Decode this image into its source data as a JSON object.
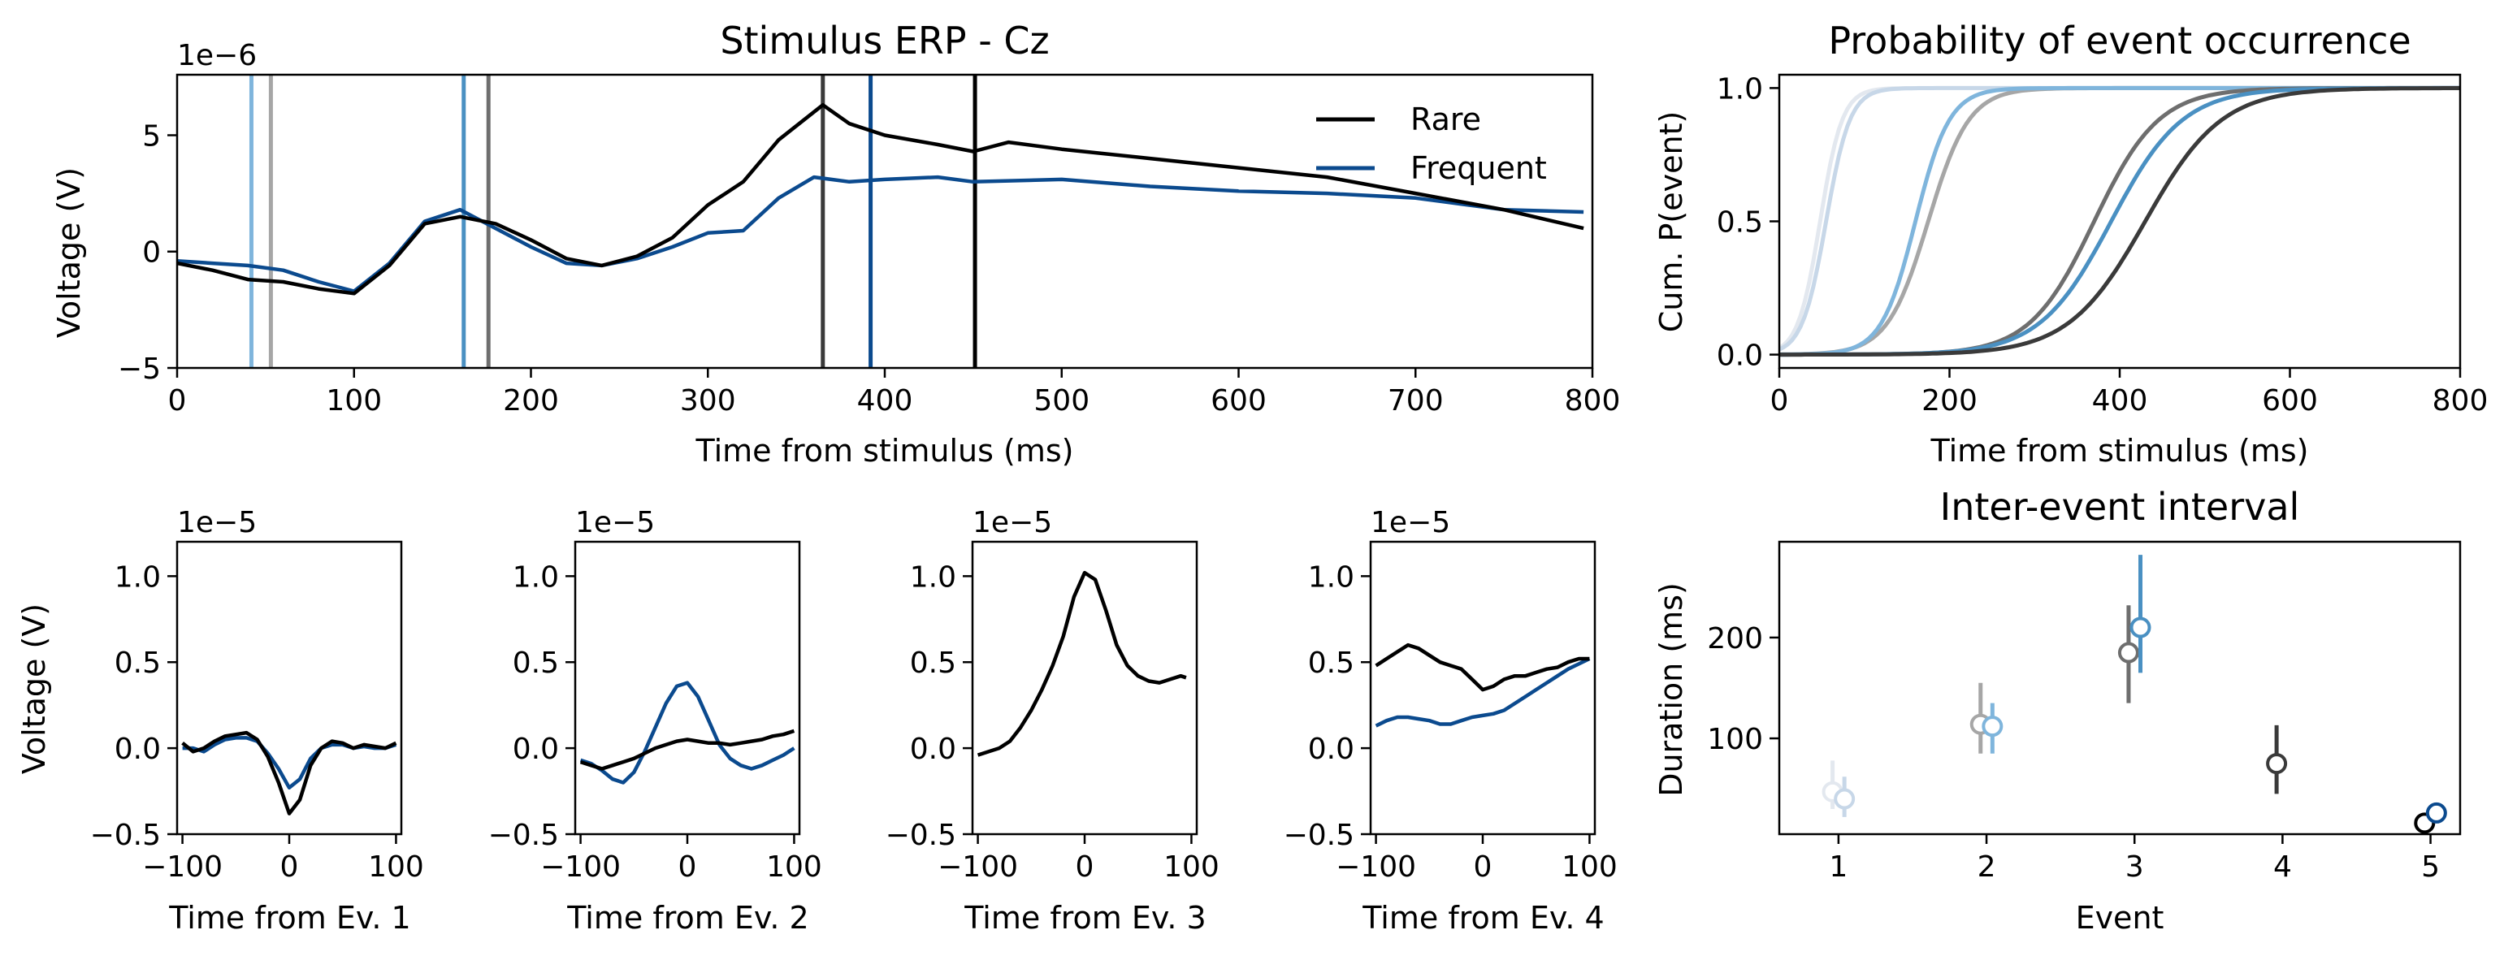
{
  "chart_data": [
    {
      "id": "erp",
      "type": "line",
      "title": "Stimulus ERP - Cz",
      "xlabel": "Time from stimulus (ms)",
      "ylabel": "Voltage (V)",
      "y_scale_label": "1e−6",
      "xlim": [
        0,
        800
      ],
      "ylim": [
        -5,
        7.6
      ],
      "xticks": [
        0,
        100,
        200,
        300,
        400,
        500,
        600,
        700,
        800
      ],
      "yticks": [
        -5,
        0,
        5
      ],
      "legend": {
        "placement": "top-right",
        "entries": [
          "Rare",
          "Frequent"
        ]
      },
      "series": [
        {
          "name": "Rare",
          "color": "#000000",
          "x": [
            0,
            20,
            40,
            60,
            80,
            100,
            120,
            140,
            160,
            180,
            200,
            220,
            240,
            260,
            280,
            300,
            320,
            340,
            365,
            380,
            400,
            430,
            450,
            470,
            500,
            550,
            600,
            650,
            700,
            750,
            795
          ],
          "y": [
            -0.5,
            -0.8,
            -1.2,
            -1.3,
            -1.6,
            -1.8,
            -0.6,
            1.2,
            1.5,
            1.2,
            0.5,
            -0.3,
            -0.6,
            -0.2,
            0.6,
            2.0,
            3.0,
            4.8,
            6.3,
            5.5,
            5.0,
            4.6,
            4.3,
            4.7,
            4.4,
            4.0,
            3.6,
            3.2,
            2.5,
            1.8,
            1.0
          ]
        },
        {
          "name": "Frequent",
          "color": "#0b4a8e",
          "x": [
            0,
            20,
            40,
            60,
            80,
            100,
            120,
            140,
            160,
            180,
            200,
            220,
            240,
            260,
            280,
            300,
            320,
            340,
            360,
            380,
            400,
            430,
            450,
            500,
            550,
            600,
            650,
            700,
            750,
            795
          ],
          "y": [
            -0.4,
            -0.5,
            -0.6,
            -0.8,
            -1.3,
            -1.7,
            -0.5,
            1.3,
            1.8,
            1.0,
            0.2,
            -0.5,
            -0.6,
            -0.3,
            0.2,
            0.8,
            0.9,
            2.3,
            3.2,
            3.0,
            3.1,
            3.2,
            3.0,
            3.1,
            2.8,
            2.6,
            2.5,
            2.3,
            1.8,
            1.7
          ]
        }
      ],
      "event_lines": [
        {
          "x": 42,
          "color": "#7fb5dc"
        },
        {
          "x": 53,
          "color": "#a6a6a6"
        },
        {
          "x": 162,
          "color": "#4a90c2"
        },
        {
          "x": 176,
          "color": "#6e6e6e"
        },
        {
          "x": 365,
          "color": "#3a3a3a"
        },
        {
          "x": 392,
          "color": "#0b4a8e"
        },
        {
          "x": 451,
          "color": "#000000"
        }
      ]
    },
    {
      "id": "cum",
      "type": "line",
      "title": "Probability of event occurrence",
      "xlabel": "Time from stimulus (ms)",
      "ylabel": "Cum. P(event)",
      "xlim": [
        0,
        800
      ],
      "ylim": [
        -0.05,
        1.05
      ],
      "xticks": [
        0,
        200,
        400,
        600,
        800
      ],
      "yticks": [
        0.0,
        0.5,
        1.0
      ],
      "series": [
        {
          "color": "#e3e8ef",
          "mu": 48,
          "s": 13
        },
        {
          "color": "#c7d7e8",
          "mu": 55,
          "s": 14
        },
        {
          "color": "#a6a6a6",
          "mu": 175,
          "s": 24
        },
        {
          "color": "#7fb5dc",
          "mu": 160,
          "s": 20
        },
        {
          "color": "#6e6e6e",
          "mu": 370,
          "s": 38
        },
        {
          "color": "#4a90c2",
          "mu": 390,
          "s": 42
        },
        {
          "color": "#3a3a3a",
          "mu": 430,
          "s": 45
        }
      ]
    },
    {
      "id": "ev1",
      "type": "line",
      "xlabel": "Time from Ev. 1",
      "ylabel": "Voltage (V)",
      "y_scale_label": "1e−5",
      "xlim": [
        -105,
        105
      ],
      "ylim": [
        -0.5,
        1.2
      ],
      "xticks": [
        -100,
        0,
        100
      ],
      "yticks": [
        -0.5,
        0.0,
        0.5,
        1.0
      ],
      "series": [
        {
          "name": "Rare",
          "color": "#000000",
          "x": [
            -100,
            -90,
            -80,
            -70,
            -60,
            -50,
            -40,
            -30,
            -20,
            -10,
            0,
            10,
            20,
            30,
            40,
            50,
            60,
            70,
            80,
            90,
            100
          ],
          "y": [
            0.03,
            -0.02,
            0.0,
            0.04,
            0.07,
            0.08,
            0.09,
            0.05,
            -0.05,
            -0.2,
            -0.38,
            -0.3,
            -0.1,
            0.0,
            0.04,
            0.03,
            0.0,
            0.02,
            0.01,
            0.0,
            0.03
          ]
        },
        {
          "name": "Frequent",
          "color": "#0b4a8e",
          "x": [
            -100,
            -90,
            -80,
            -70,
            -60,
            -50,
            -40,
            -30,
            -20,
            -10,
            0,
            10,
            20,
            30,
            40,
            50,
            60,
            70,
            80,
            90,
            100
          ],
          "y": [
            0.0,
            0.0,
            -0.02,
            0.02,
            0.05,
            0.06,
            0.06,
            0.04,
            -0.03,
            -0.12,
            -0.23,
            -0.18,
            -0.06,
            0.0,
            0.02,
            0.02,
            0.0,
            0.01,
            0.0,
            0.0,
            0.02
          ]
        }
      ]
    },
    {
      "id": "ev2",
      "type": "line",
      "xlabel": "Time from Ev. 2",
      "y_scale_label": "1e−5",
      "xlim": [
        -105,
        105
      ],
      "ylim": [
        -0.5,
        1.2
      ],
      "xticks": [
        -100,
        0,
        100
      ],
      "yticks": [
        -0.5,
        0.0,
        0.5,
        1.0
      ],
      "series": [
        {
          "name": "Rare",
          "color": "#000000",
          "x": [
            -100,
            -90,
            -80,
            -70,
            -60,
            -50,
            -40,
            -30,
            -20,
            -10,
            0,
            10,
            20,
            30,
            40,
            50,
            60,
            70,
            80,
            90,
            100
          ],
          "y": [
            -0.08,
            -0.1,
            -0.12,
            -0.1,
            -0.08,
            -0.06,
            -0.03,
            0.0,
            0.02,
            0.04,
            0.05,
            0.04,
            0.03,
            0.03,
            0.02,
            0.03,
            0.04,
            0.05,
            0.07,
            0.08,
            0.1
          ]
        },
        {
          "name": "Frequent",
          "color": "#0b4a8e",
          "x": [
            -100,
            -90,
            -80,
            -70,
            -60,
            -50,
            -40,
            -30,
            -20,
            -10,
            0,
            10,
            20,
            30,
            40,
            50,
            60,
            70,
            80,
            90,
            100
          ],
          "y": [
            -0.07,
            -0.09,
            -0.13,
            -0.18,
            -0.2,
            -0.14,
            -0.02,
            0.12,
            0.26,
            0.36,
            0.38,
            0.3,
            0.16,
            0.02,
            -0.06,
            -0.1,
            -0.12,
            -0.1,
            -0.07,
            -0.04,
            0.0
          ]
        }
      ]
    },
    {
      "id": "ev3",
      "type": "line",
      "xlabel": "Time from Ev. 3",
      "y_scale_label": "1e−5",
      "xlim": [
        -105,
        105
      ],
      "ylim": [
        -0.5,
        1.2
      ],
      "xticks": [
        -100,
        0,
        100
      ],
      "yticks": [
        -0.5,
        0.0,
        0.5,
        1.0
      ],
      "series": [
        {
          "name": "Rare",
          "color": "#000000",
          "x": [
            -100,
            -90,
            -80,
            -70,
            -60,
            -50,
            -40,
            -30,
            -20,
            -10,
            0,
            10,
            20,
            30,
            40,
            50,
            60,
            70,
            80,
            90,
            95
          ],
          "y": [
            -0.04,
            -0.02,
            0.0,
            0.04,
            0.12,
            0.22,
            0.34,
            0.48,
            0.65,
            0.88,
            1.02,
            0.98,
            0.8,
            0.6,
            0.48,
            0.42,
            0.39,
            0.38,
            0.4,
            0.42,
            0.41
          ]
        }
      ]
    },
    {
      "id": "ev4",
      "type": "line",
      "xlabel": "Time from Ev. 4",
      "y_scale_label": "1e−5",
      "xlim": [
        -105,
        105
      ],
      "ylim": [
        -0.5,
        1.2
      ],
      "xticks": [
        -100,
        0,
        100
      ],
      "yticks": [
        -0.5,
        0.0,
        0.5,
        1.0
      ],
      "series": [
        {
          "name": "Rare",
          "color": "#000000",
          "x": [
            -100,
            -90,
            -80,
            -70,
            -60,
            -50,
            -40,
            -30,
            -20,
            -10,
            0,
            10,
            20,
            30,
            40,
            50,
            60,
            70,
            80,
            90,
            100
          ],
          "y": [
            0.48,
            0.52,
            0.56,
            0.6,
            0.58,
            0.54,
            0.5,
            0.48,
            0.46,
            0.4,
            0.34,
            0.36,
            0.4,
            0.42,
            0.42,
            0.44,
            0.46,
            0.47,
            0.5,
            0.52,
            0.52
          ]
        },
        {
          "name": "Frequent",
          "color": "#0b4a8e",
          "x": [
            -100,
            -90,
            -80,
            -70,
            -60,
            -50,
            -40,
            -30,
            -20,
            -10,
            0,
            10,
            20,
            30,
            40,
            50,
            60,
            70,
            80,
            90,
            100
          ],
          "y": [
            0.13,
            0.16,
            0.18,
            0.18,
            0.17,
            0.16,
            0.14,
            0.14,
            0.16,
            0.18,
            0.19,
            0.2,
            0.22,
            0.26,
            0.3,
            0.34,
            0.38,
            0.42,
            0.46,
            0.49,
            0.52
          ]
        }
      ]
    },
    {
      "id": "iei",
      "type": "scatter",
      "title": "Inter-event interval",
      "xlabel": "Event",
      "ylabel": "Duration (ms)",
      "xlim": [
        0.6,
        5.2
      ],
      "ylim": [
        5,
        295
      ],
      "xticks": [
        1,
        2,
        3,
        4,
        5
      ],
      "yticks": [
        100,
        200
      ],
      "points": [
        {
          "x": 0.96,
          "y": 47,
          "lo": 30,
          "hi": 78,
          "color": "#e3e8ef"
        },
        {
          "x": 1.04,
          "y": 40,
          "lo": 22,
          "hi": 62,
          "color": "#c7d7e8"
        },
        {
          "x": 1.96,
          "y": 114,
          "lo": 85,
          "hi": 155,
          "color": "#a6a6a6"
        },
        {
          "x": 2.04,
          "y": 112,
          "lo": 85,
          "hi": 135,
          "color": "#7fb5dc"
        },
        {
          "x": 2.96,
          "y": 185,
          "lo": 135,
          "hi": 232,
          "color": "#6e6e6e"
        },
        {
          "x": 3.04,
          "y": 210,
          "lo": 165,
          "hi": 282,
          "color": "#4a90c2"
        },
        {
          "x": 3.96,
          "y": 75,
          "lo": 45,
          "hi": 113,
          "color": "#3a3a3a"
        },
        {
          "x": 4.96,
          "y": 16,
          "lo": 10,
          "hi": 22,
          "color": "#000000"
        },
        {
          "x": 5.04,
          "y": 26,
          "lo": 20,
          "hi": 32,
          "color": "#0b4a8e"
        }
      ]
    }
  ]
}
